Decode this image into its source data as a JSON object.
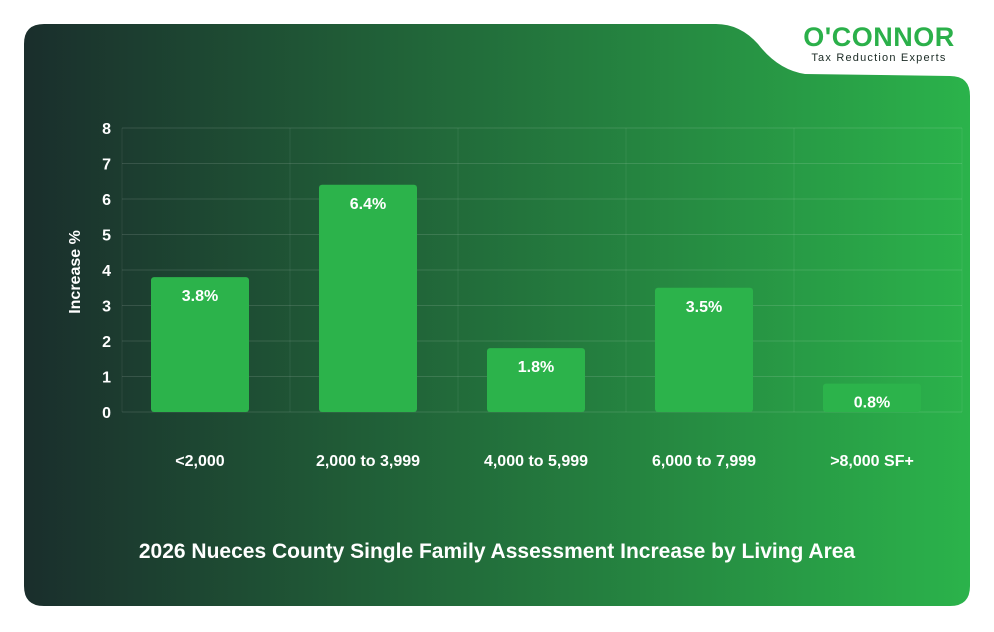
{
  "brand": {
    "name": "O'CONNOR",
    "tagline": "Tax Reduction Experts",
    "color": "#2bb04a"
  },
  "colors": {
    "bar": "#2cb34b",
    "background_dark": "#1a2e2c",
    "background_light": "#2bb34b",
    "text": "#ffffff"
  },
  "chart_data": {
    "type": "bar",
    "title": "2026 Nueces County Single Family Assessment Increase by Living Area",
    "xlabel": "",
    "ylabel": "Increase %",
    "categories": [
      "<2,000",
      "2,000 to 3,999",
      "4,000 to 5,999",
      "6,000 to 7,999",
      ">8,000 SF+"
    ],
    "values": [
      3.8,
      6.4,
      1.8,
      3.5,
      0.8
    ],
    "data_labels": [
      "3.8%",
      "6.4%",
      "1.8%",
      "3.5%",
      "0.8%"
    ],
    "ylim": [
      0,
      8
    ],
    "yticks": [
      "0",
      "1",
      "2",
      "3",
      "4",
      "5",
      "6",
      "7",
      "8"
    ],
    "grid": true,
    "legend": "none"
  }
}
